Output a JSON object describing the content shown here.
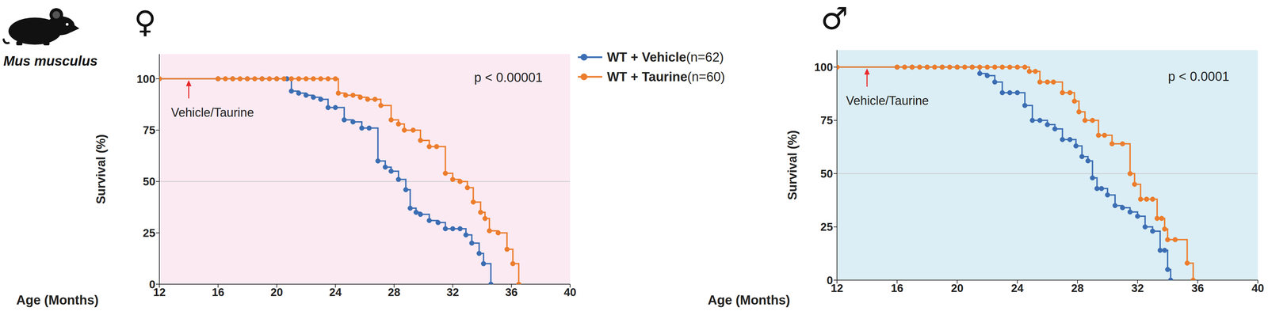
{
  "figure": {
    "species_label": "Mus musculus"
  },
  "chart_data": [
    {
      "type": "line",
      "title": "♀",
      "x_label": "Age (Months)",
      "y_label": "Survival (%)",
      "xlim": [
        12,
        40
      ],
      "xticks": [
        12,
        16,
        20,
        24,
        28,
        32,
        36,
        40
      ],
      "ylim": [
        0,
        112
      ],
      "yticks": [
        0,
        25,
        50,
        75,
        100
      ],
      "grid": false,
      "reference_y": 50,
      "legend": "right",
      "line_style": "step",
      "marker": "circle",
      "p_value": "p < 0.00001",
      "annotations": [
        {
          "text": "Vehicle/Taurine",
          "x": 14,
          "y": 100
        }
      ],
      "series": [
        {
          "name": "WT + Vehicle (n=62)",
          "color": "#3b6db3",
          "x": [
            12,
            16,
            17,
            18,
            19,
            20,
            20.7,
            21,
            21.5,
            22,
            22.5,
            23,
            23.5,
            24,
            24.6,
            25.2,
            25.8,
            26.3,
            26.9,
            27.4,
            27.8,
            28.3,
            28.8,
            29.1,
            29.5,
            29.8,
            30.4,
            31,
            31.5,
            32,
            32.5,
            32.9,
            33.3,
            33.8,
            34.1,
            34.6
          ],
          "values": [
            100,
            100,
            100,
            100,
            100,
            100,
            100,
            94,
            93,
            92,
            91,
            90,
            86,
            86,
            80,
            79,
            76,
            76,
            60,
            57,
            55,
            51,
            46,
            37,
            35,
            34,
            31,
            30,
            27,
            27,
            27,
            24,
            20,
            15,
            10,
            0
          ]
        },
        {
          "name": "WT + Taurine (n=60)",
          "color": "#ec7d2c",
          "x": [
            12,
            16,
            16.5,
            17,
            17.5,
            18,
            18.5,
            19,
            19.5,
            20,
            20.5,
            21,
            21.5,
            22,
            22.5,
            23,
            23.5,
            24,
            24.2,
            24.7,
            25.2,
            25.7,
            26.2,
            26.7,
            27.1,
            27.8,
            28.3,
            28.7,
            29.3,
            29.8,
            30.4,
            30.9,
            31.5,
            32,
            32.5,
            33,
            33.4,
            33.9,
            34.2,
            34.5,
            35.1,
            35.7,
            36.1,
            36.5
          ],
          "values": [
            100,
            100,
            100,
            100,
            100,
            100,
            100,
            100,
            100,
            100,
            100,
            100,
            100,
            100,
            100,
            100,
            100,
            100,
            93,
            92,
            92,
            91,
            90,
            90,
            87,
            80,
            78,
            75,
            75,
            70,
            67,
            67,
            54,
            51,
            50,
            47,
            40,
            35,
            32,
            26,
            25,
            17,
            10,
            0
          ]
        }
      ]
    },
    {
      "type": "line",
      "title": "♂",
      "x_label": "Age (Months)",
      "y_label": "Survival (%)",
      "xlim": [
        12,
        40
      ],
      "xticks": [
        12,
        16,
        20,
        24,
        28,
        32,
        36,
        40
      ],
      "ylim": [
        0,
        108
      ],
      "yticks": [
        0,
        25,
        50,
        75,
        100
      ],
      "grid": false,
      "reference_y": 50,
      "line_style": "step",
      "marker": "circle",
      "p_value": "p < 0.0001",
      "annotations": [
        {
          "text": "Vehicle/Taurine",
          "x": 14,
          "y": 100
        }
      ],
      "series": [
        {
          "name": "WT + Vehicle (n=62)",
          "color": "#3b6db3",
          "x": [
            12,
            16,
            17,
            18,
            19,
            20,
            21,
            21.5,
            22,
            22.5,
            23,
            23.5,
            24,
            24.5,
            25,
            25.5,
            26,
            26.5,
            27,
            27.5,
            27.9,
            28.3,
            28.7,
            29,
            29.3,
            29.6,
            30,
            30.5,
            31,
            31.5,
            32,
            32.5,
            33,
            33.5,
            33.8,
            34,
            34.2
          ],
          "values": [
            100,
            100,
            100,
            100,
            100,
            100,
            100,
            97,
            96,
            93,
            88,
            88,
            88,
            82,
            75,
            75,
            73,
            71,
            66,
            66,
            63,
            58,
            56,
            48,
            43,
            43,
            40,
            35,
            34,
            32,
            30,
            25,
            23,
            14,
            14,
            5,
            0
          ]
        },
        {
          "name": "WT + Taurine (n=60)",
          "color": "#ec7d2c",
          "x": [
            12,
            16,
            16.5,
            17,
            17.5,
            18,
            18.5,
            19,
            19.5,
            20,
            20.5,
            21,
            21.5,
            22,
            22.5,
            23,
            23.5,
            24,
            24.5,
            24.8,
            25.2,
            25.5,
            26,
            26.4,
            27,
            27.5,
            27.8,
            28.1,
            28.5,
            29,
            29.4,
            29.8,
            30.3,
            31,
            31.5,
            31.8,
            32.2,
            32.6,
            33,
            33.3,
            33.6,
            33.8,
            34,
            34.5,
            35.3,
            35.7
          ],
          "values": [
            100,
            100,
            100,
            100,
            100,
            100,
            100,
            100,
            100,
            100,
            100,
            100,
            100,
            100,
            100,
            100,
            100,
            100,
            100,
            98,
            98,
            93,
            93,
            93,
            88,
            88,
            84,
            79,
            75,
            75,
            68,
            68,
            64,
            64,
            50,
            45,
            38,
            38,
            38,
            29,
            29,
            24,
            19,
            19,
            8,
            0
          ]
        }
      ]
    }
  ]
}
